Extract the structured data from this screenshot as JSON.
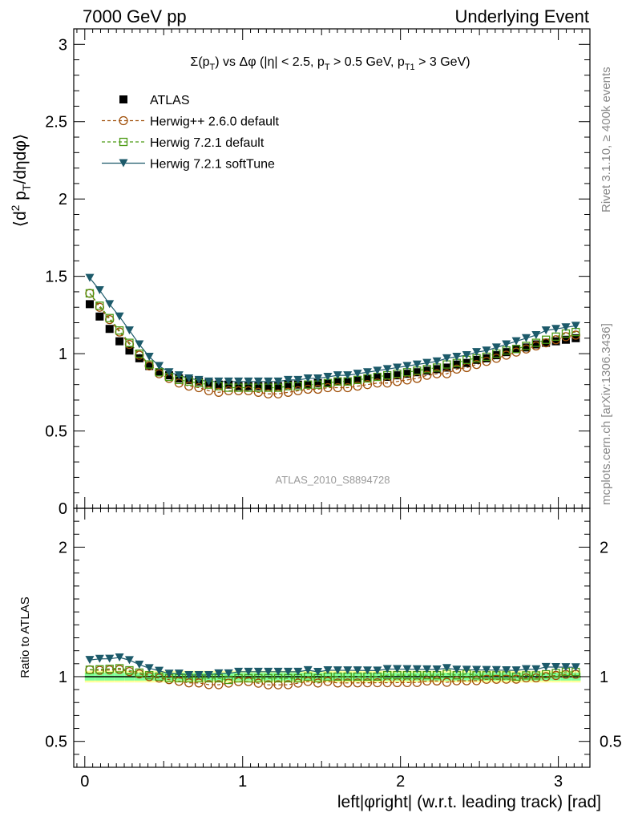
{
  "header": {
    "left": "7000 GeV pp",
    "right": "Underlying Event"
  },
  "chart_data": {
    "type": "scatter",
    "title": "Σ(pT) vs Δφ (|η| < 2.5, pT > 0.5 GeV, pT1 > 3 GeV)",
    "title_parts": {
      "sigma": "Σ(p",
      "sub1": "T",
      "mid1": ") vs Δφ (|η| < 2.5, p",
      "sub2": "T",
      "mid2": " > 0.5 GeV, p",
      "sub3": "T1",
      "end": " > 3 GeV)"
    },
    "ylabel_parts": {
      "a": "⟨d",
      "sup": "2",
      "b": " p",
      "sub": "T",
      "c": "/dηdφ⟩"
    },
    "xlabel": "left|φright| (w.r.t. leading track) [rad]",
    "ratio_ylabel": "Ratio to ATLAS",
    "watermark": "ATLAS_2010_S8894728",
    "side_label_top": "Rivet 3.1.10, ≥ 400k events",
    "side_label_bottom": "mcplots.cern.ch [arXiv:1306.3436]",
    "xlim": [
      -0.07,
      3.2
    ],
    "ylim": [
      0,
      3.1
    ],
    "ratio_ylim": [
      0.3,
      2.3
    ],
    "x_ticks": [
      "0",
      "1",
      "2",
      "3"
    ],
    "y_ticks": [
      "0",
      "0.5",
      "1",
      "1.5",
      "2",
      "2.5",
      "3"
    ],
    "ratio_y_ticks": [
      "0.5",
      "1",
      "2"
    ],
    "legend_position": "top-left",
    "colors": {
      "atlas": "#000000",
      "herwigpp": "#a0500a",
      "herwig721": "#4c9a14",
      "softtune": "#1c5a6a",
      "band_inner": "#80ff9a",
      "band_outer": "#ffff99"
    },
    "x": [
      0.0314,
      0.0942,
      0.157,
      0.2199,
      0.2827,
      0.3456,
      0.4084,
      0.4712,
      0.5341,
      0.5969,
      0.6597,
      0.7226,
      0.7854,
      0.8482,
      0.9111,
      0.9739,
      1.0367,
      1.0996,
      1.1624,
      1.2252,
      1.2881,
      1.3509,
      1.4137,
      1.4766,
      1.5394,
      1.6022,
      1.6651,
      1.7279,
      1.7907,
      1.8536,
      1.9164,
      1.9792,
      2.0421,
      2.1049,
      2.1677,
      2.2306,
      2.2934,
      2.3562,
      2.4191,
      2.4819,
      2.5447,
      2.6076,
      2.6704,
      2.7332,
      2.7961,
      2.8589,
      2.9217,
      2.9846,
      3.0474,
      3.1102
    ],
    "series": [
      {
        "name": "ATLAS",
        "marker": "square-filled",
        "values": [
          1.32,
          1.24,
          1.16,
          1.08,
          1.02,
          0.97,
          0.92,
          0.88,
          0.86,
          0.84,
          0.83,
          0.82,
          0.81,
          0.8,
          0.8,
          0.79,
          0.79,
          0.79,
          0.79,
          0.79,
          0.8,
          0.8,
          0.8,
          0.81,
          0.81,
          0.82,
          0.82,
          0.83,
          0.84,
          0.85,
          0.85,
          0.86,
          0.87,
          0.88,
          0.89,
          0.9,
          0.91,
          0.93,
          0.94,
          0.96,
          0.97,
          0.99,
          1.01,
          1.03,
          1.04,
          1.06,
          1.07,
          1.08,
          1.09,
          1.1
        ]
      },
      {
        "name": "Herwig++ 2.6.0 default",
        "marker": "circle-open",
        "values": [
          1.39,
          1.3,
          1.22,
          1.14,
          1.06,
          0.99,
          0.92,
          0.87,
          0.84,
          0.81,
          0.79,
          0.78,
          0.76,
          0.75,
          0.76,
          0.76,
          0.76,
          0.75,
          0.74,
          0.74,
          0.75,
          0.76,
          0.77,
          0.77,
          0.78,
          0.78,
          0.78,
          0.79,
          0.8,
          0.81,
          0.81,
          0.82,
          0.83,
          0.84,
          0.86,
          0.87,
          0.87,
          0.9,
          0.91,
          0.93,
          0.95,
          0.97,
          0.99,
          1.01,
          1.03,
          1.05,
          1.07,
          1.09,
          1.11,
          1.12
        ]
      },
      {
        "name": "Herwig 7.2.1 default",
        "marker": "square-open",
        "values": [
          1.39,
          1.31,
          1.23,
          1.15,
          1.07,
          1.0,
          0.93,
          0.88,
          0.85,
          0.83,
          0.82,
          0.81,
          0.8,
          0.79,
          0.78,
          0.78,
          0.78,
          0.78,
          0.78,
          0.78,
          0.79,
          0.79,
          0.8,
          0.8,
          0.81,
          0.82,
          0.82,
          0.83,
          0.84,
          0.85,
          0.86,
          0.87,
          0.88,
          0.89,
          0.9,
          0.91,
          0.93,
          0.94,
          0.96,
          0.97,
          0.98,
          1.0,
          1.02,
          1.03,
          1.05,
          1.07,
          1.09,
          1.11,
          1.13,
          1.14
        ]
      },
      {
        "name": "Herwig 7.2.1 softTune",
        "marker": "triangle-down-filled",
        "values": [
          1.49,
          1.41,
          1.32,
          1.24,
          1.15,
          1.06,
          0.98,
          0.92,
          0.88,
          0.86,
          0.84,
          0.83,
          0.82,
          0.82,
          0.82,
          0.82,
          0.82,
          0.82,
          0.82,
          0.82,
          0.83,
          0.83,
          0.84,
          0.84,
          0.85,
          0.86,
          0.86,
          0.87,
          0.88,
          0.89,
          0.9,
          0.91,
          0.92,
          0.93,
          0.94,
          0.95,
          0.97,
          0.98,
          0.99,
          1.01,
          1.02,
          1.04,
          1.06,
          1.08,
          1.1,
          1.12,
          1.15,
          1.16,
          1.17,
          1.18
        ]
      }
    ]
  }
}
